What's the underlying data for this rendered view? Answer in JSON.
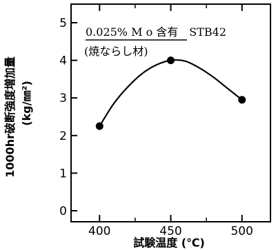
{
  "chart_data": {
    "type": "line",
    "title": "",
    "annotations": {
      "line1": "0.025% M o 含有　STB42",
      "line2": "(焼ならし材)"
    },
    "xlabel": "試験温度 (℃)",
    "ylabel": "1000hr破断強度増加量",
    "ylabel_unit": "(kg/㎜²)",
    "xlim": [
      380,
      520
    ],
    "ylim": [
      0,
      5
    ],
    "x_ticks": [
      400,
      450,
      500
    ],
    "x_tick_labels": [
      "400",
      "450",
      "500"
    ],
    "x_minor_ticks": [
      425,
      475
    ],
    "y_ticks": [
      0,
      1,
      2,
      3,
      4,
      5
    ],
    "y_tick_labels": [
      "0",
      "1",
      "2",
      "3",
      "4",
      "5"
    ],
    "grid": false,
    "series": [
      {
        "x": [
          400,
          450,
          500
        ],
        "y": [
          2.25,
          4.0,
          2.95
        ],
        "curve": [
          [
            400,
            2.25
          ],
          [
            410,
            2.85
          ],
          [
            420,
            3.3
          ],
          [
            430,
            3.65
          ],
          [
            440,
            3.88
          ],
          [
            450,
            4.0
          ],
          [
            460,
            3.98
          ],
          [
            470,
            3.8
          ],
          [
            480,
            3.55
          ],
          [
            490,
            3.25
          ],
          [
            500,
            2.95
          ]
        ]
      }
    ]
  }
}
